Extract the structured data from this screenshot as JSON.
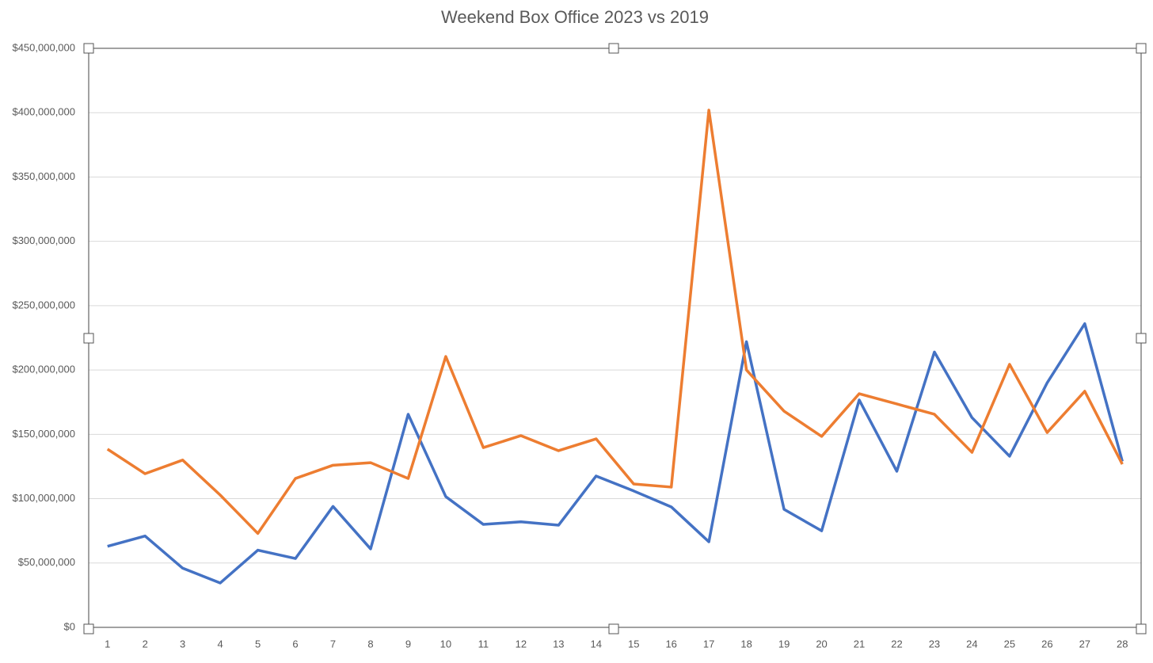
{
  "chart_data": {
    "type": "line",
    "title": "Weekend Box Office 2023 vs 2019",
    "categories": [
      "1",
      "2",
      "3",
      "4",
      "5",
      "6",
      "7",
      "8",
      "9",
      "10",
      "11",
      "12",
      "13",
      "14",
      "15",
      "16",
      "17",
      "18",
      "19",
      "20",
      "21",
      "22",
      "23",
      "24",
      "25",
      "26",
      "27",
      "28"
    ],
    "series": [
      {
        "color": "#4472c4",
        "values": [
          63000000,
          71000000,
          46000000,
          34500000,
          60000000,
          53500000,
          94000000,
          61000000,
          165600000,
          101600000,
          80000000,
          82000000,
          79400000,
          117600000,
          106000000,
          93600000,
          66500000,
          222000000,
          91700000,
          75000000,
          176700000,
          121300000,
          214000000,
          163000000,
          133000000,
          190000000,
          236000000,
          129000000
        ]
      },
      {
        "color": "#ed7d31",
        "values": [
          138500000,
          119400000,
          130000000,
          102800000,
          73000000,
          115700000,
          126000000,
          128000000,
          115700000,
          210500000,
          139700000,
          149000000,
          137300000,
          146500000,
          111400000,
          109000000,
          402000000,
          200000000,
          168000000,
          148400000,
          181600000,
          173600000,
          165600000,
          136000000,
          204400000,
          151400000,
          183500000,
          126800000
        ]
      }
    ],
    "ylim": [
      0,
      450000000
    ],
    "yticks": [
      {
        "value": 0,
        "label": "$0"
      },
      {
        "value": 50000000,
        "label": "$50,000,000"
      },
      {
        "value": 100000000,
        "label": "$100,000,000"
      },
      {
        "value": 150000000,
        "label": "$150,000,000"
      },
      {
        "value": 200000000,
        "label": "$200,000,000"
      },
      {
        "value": 250000000,
        "label": "$250,000,000"
      },
      {
        "value": 300000000,
        "label": "$300,000,000"
      },
      {
        "value": 350000000,
        "label": "$350,000,000"
      },
      {
        "value": 400000000,
        "label": "$400,000,000"
      },
      {
        "value": 450000000,
        "label": "$450,000,000"
      }
    ],
    "grid": true
  }
}
